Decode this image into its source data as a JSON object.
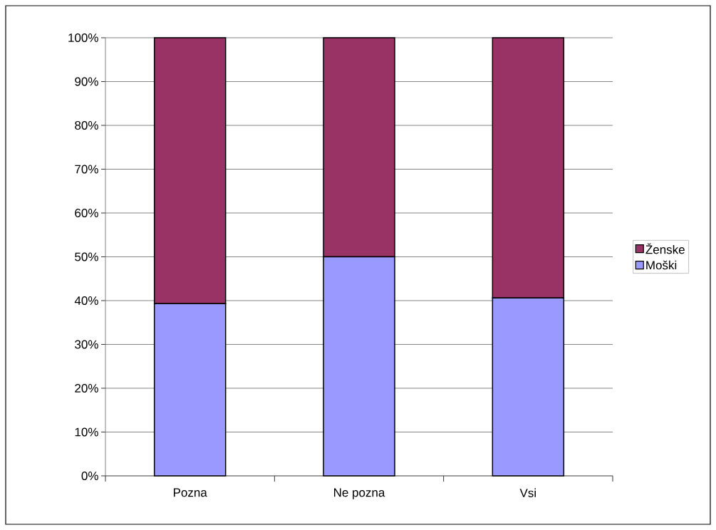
{
  "chart_data": {
    "type": "bar",
    "stacked": true,
    "categories": [
      "Pozna",
      "Ne pozna",
      "Vsi"
    ],
    "series": [
      {
        "name": "Moški",
        "color": "#9999ff",
        "values": [
          39.3,
          50,
          40.6
        ]
      },
      {
        "name": "Ženske",
        "color": "#993366",
        "values": [
          60.7,
          50,
          59.4
        ]
      }
    ],
    "ylim": [
      0,
      100
    ],
    "yticks": [
      {
        "value": 0,
        "label": "0%"
      },
      {
        "value": 10,
        "label": "10%"
      },
      {
        "value": 20,
        "label": "20%"
      },
      {
        "value": 30,
        "label": "30%"
      },
      {
        "value": 40,
        "label": "40%"
      },
      {
        "value": 50,
        "label": "50%"
      },
      {
        "value": 60,
        "label": "60%"
      },
      {
        "value": 70,
        "label": "70%"
      },
      {
        "value": 80,
        "label": "80%"
      },
      {
        "value": 90,
        "label": "90%"
      },
      {
        "value": 100,
        "label": "100%"
      }
    ],
    "grid": "y",
    "legend": "right"
  }
}
